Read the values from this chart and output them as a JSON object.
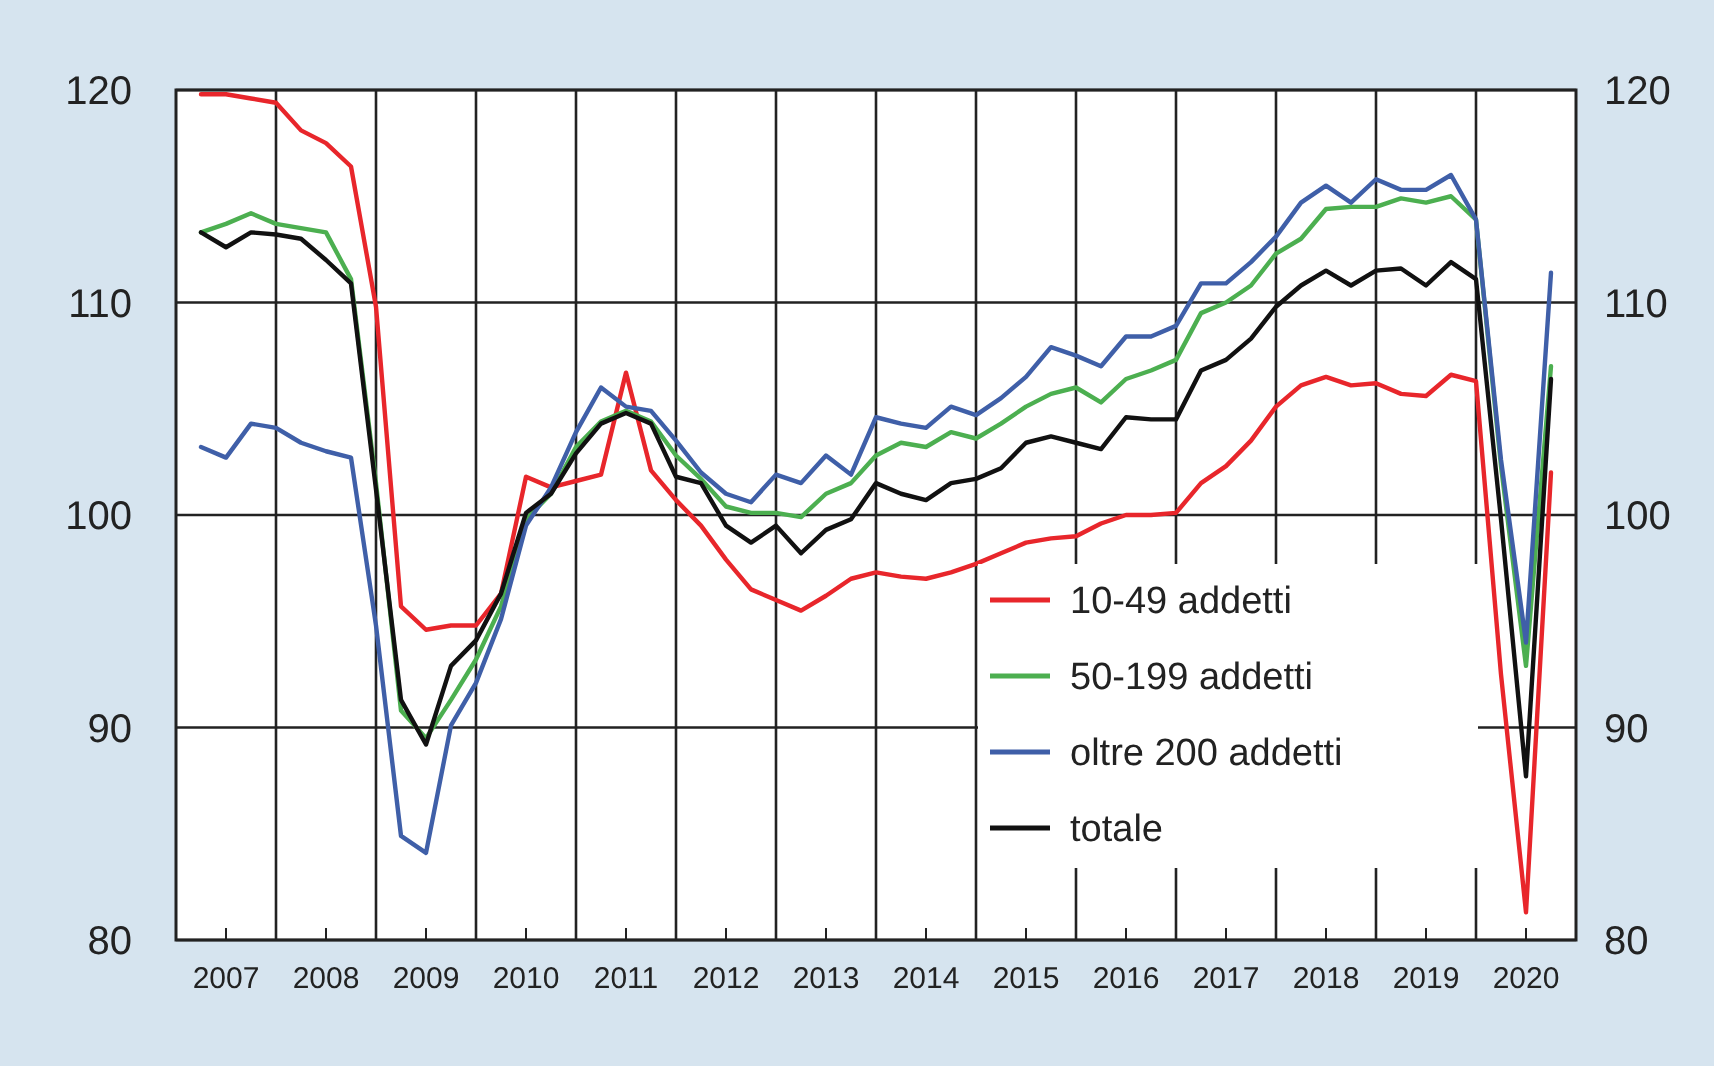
{
  "chart_data": {
    "type": "line",
    "x": [
      2007.25,
      2007.5,
      2007.75,
      2008,
      2008.25,
      2008.5,
      2008.75,
      2009,
      2009.25,
      2009.5,
      2009.75,
      2010,
      2010.25,
      2010.5,
      2010.75,
      2011,
      2011.25,
      2011.5,
      2011.75,
      2012,
      2012.25,
      2012.5,
      2012.75,
      2013,
      2013.25,
      2013.5,
      2013.75,
      2014,
      2014.25,
      2014.5,
      2014.75,
      2015,
      2015.25,
      2015.5,
      2015.75,
      2016,
      2016.25,
      2016.5,
      2016.75,
      2017,
      2017.25,
      2017.5,
      2017.75,
      2018,
      2018.25,
      2018.5,
      2018.75,
      2019,
      2019.25,
      2019.5,
      2019.75,
      2020,
      2020.25,
      2020.5,
      2020.75
    ],
    "series": [
      {
        "name": "10-49 addetti",
        "color": "#e8262b",
        "values": [
          119.8,
          119.8,
          119.6,
          119.4,
          118.1,
          117.5,
          116.4,
          109.8,
          95.7,
          94.6,
          94.8,
          94.8,
          96.3,
          101.8,
          101.3,
          101.6,
          101.9,
          106.7,
          102.1,
          100.7,
          99.5,
          97.9,
          96.5,
          96.0,
          95.5,
          96.2,
          97.0,
          97.3,
          97.1,
          97.0,
          97.3,
          97.7,
          98.2,
          98.7,
          98.9,
          99.0,
          99.6,
          100.0,
          100.0,
          100.1,
          101.5,
          102.3,
          103.5,
          105.1,
          106.1,
          106.5,
          106.1,
          106.2,
          105.7,
          105.6,
          106.6,
          106.3,
          92.5,
          81.3,
          102.0
        ]
      },
      {
        "name": "50-199 addetti",
        "color": "#4caf50",
        "values": [
          113.3,
          113.7,
          114.2,
          113.7,
          113.5,
          113.3,
          111.1,
          101.5,
          90.8,
          89.5,
          91.3,
          93.2,
          95.7,
          99.8,
          101.0,
          103.2,
          104.4,
          104.9,
          104.4,
          102.8,
          101.7,
          100.4,
          100.1,
          100.1,
          99.9,
          101.0,
          101.5,
          102.8,
          103.4,
          103.2,
          103.9,
          103.6,
          104.3,
          105.1,
          105.7,
          106.0,
          105.3,
          106.4,
          106.8,
          107.3,
          109.5,
          110.0,
          110.8,
          112.3,
          113.0,
          114.4,
          114.5,
          114.5,
          114.9,
          114.7,
          115.0,
          113.9,
          102.3,
          92.9,
          107.0
        ]
      },
      {
        "name": "oltre 200 addetti",
        "color": "#3f5fa8",
        "values": [
          103.2,
          102.7,
          104.3,
          104.1,
          103.4,
          103.0,
          102.7,
          94.8,
          84.9,
          84.1,
          90.1,
          92.1,
          95.1,
          99.5,
          101.3,
          103.9,
          106.0,
          105.1,
          104.9,
          103.5,
          102.0,
          101.0,
          100.6,
          101.9,
          101.5,
          102.8,
          101.9,
          104.6,
          104.3,
          104.1,
          105.1,
          104.7,
          105.5,
          106.5,
          107.9,
          107.5,
          107.0,
          108.4,
          108.4,
          108.9,
          110.9,
          110.9,
          111.9,
          113.1,
          114.7,
          115.5,
          114.7,
          115.8,
          115.3,
          115.3,
          116.0,
          113.9,
          102.6,
          94.0,
          111.4
        ]
      },
      {
        "name": "totale",
        "color": "#111111",
        "values": [
          113.3,
          112.6,
          113.3,
          113.2,
          113.0,
          112.0,
          110.9,
          101.2,
          91.3,
          89.2,
          92.9,
          94.1,
          96.3,
          100.1,
          101.0,
          102.9,
          104.3,
          104.8,
          104.3,
          101.8,
          101.5,
          99.5,
          98.7,
          99.5,
          98.2,
          99.3,
          99.8,
          101.5,
          101.0,
          100.7,
          101.5,
          101.7,
          102.2,
          103.4,
          103.7,
          103.4,
          103.1,
          104.6,
          104.5,
          104.5,
          106.8,
          107.3,
          108.3,
          109.8,
          110.8,
          111.5,
          110.8,
          111.5,
          111.6,
          110.8,
          111.9,
          111.1,
          99.8,
          87.7,
          106.4
        ]
      }
    ],
    "xlim": [
      2007,
      2021
    ],
    "xticks": [
      {
        "value": 2007.5,
        "label": "2007"
      },
      {
        "value": 2008,
        "label": null
      },
      {
        "value": 2008.5,
        "label": "2008"
      },
      {
        "value": 2009,
        "label": null
      },
      {
        "value": 2009.5,
        "label": "2009"
      },
      {
        "value": 2010,
        "label": null
      },
      {
        "value": 2010.5,
        "label": "2010"
      },
      {
        "value": 2011,
        "label": null
      },
      {
        "value": 2011.5,
        "label": "2011"
      },
      {
        "value": 2012,
        "label": null
      },
      {
        "value": 2012.5,
        "label": "2012"
      },
      {
        "value": 2013,
        "label": null
      },
      {
        "value": 2013.5,
        "label": "2013"
      },
      {
        "value": 2014,
        "label": null
      },
      {
        "value": 2014.5,
        "label": "2014"
      },
      {
        "value": 2015,
        "label": null
      },
      {
        "value": 2015.5,
        "label": "2015"
      },
      {
        "value": 2016,
        "label": null
      },
      {
        "value": 2016.5,
        "label": "2016"
      },
      {
        "value": 2017,
        "label": null
      },
      {
        "value": 2017.5,
        "label": "2017"
      },
      {
        "value": 2018,
        "label": null
      },
      {
        "value": 2018.5,
        "label": "2018"
      },
      {
        "value": 2019,
        "label": null
      },
      {
        "value": 2019.5,
        "label": "2019"
      },
      {
        "value": 2020,
        "label": null
      },
      {
        "value": 2020.5,
        "label": "2020"
      }
    ],
    "ylim": [
      80,
      120
    ],
    "yticks": [
      80,
      90,
      100,
      110,
      120
    ],
    "y2lim": [
      80,
      120
    ],
    "y2ticks": [
      80,
      90,
      100,
      110,
      120
    ],
    "grid": true,
    "legend": "bottom right"
  }
}
